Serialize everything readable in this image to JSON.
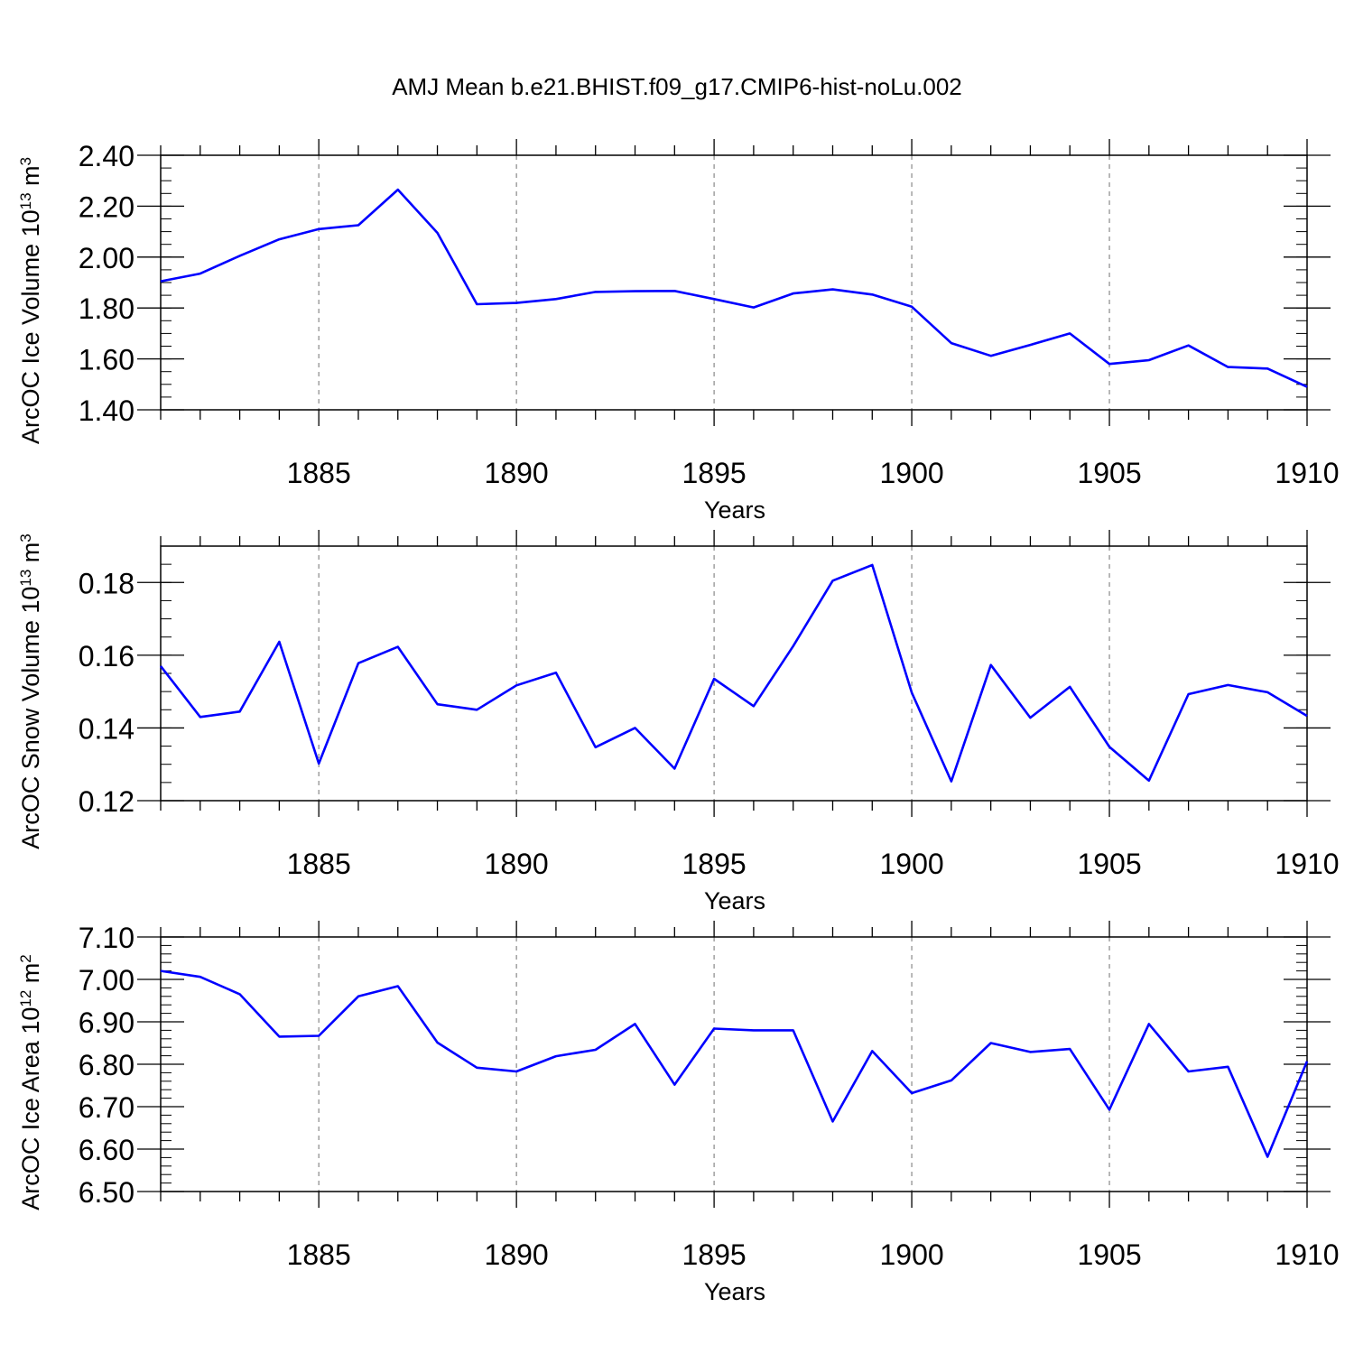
{
  "title": "AMJ Mean b.e21.BHIST.f09_g17.CMIP6-hist-noLu.002",
  "line_color": "#0000ff",
  "chart_data": [
    {
      "type": "line",
      "ylabel_text": "ArcOC Ice Volume 10",
      "ylabel_exp": "13",
      "ylabel_unit": " m",
      "ylabel_unit_exp": "3",
      "xlabel": "Years",
      "xlim": [
        1881,
        1910
      ],
      "ylim": [
        1.4,
        2.4
      ],
      "y_ticks": [
        "1.40",
        "1.60",
        "1.80",
        "2.00",
        "2.20",
        "2.40"
      ],
      "y_tick_values": [
        1.4,
        1.6,
        1.8,
        2.0,
        2.2,
        2.4
      ],
      "y_minor_step": 0.05,
      "x_ticks": [
        "1885",
        "1890",
        "1895",
        "1900",
        "1905",
        "1910"
      ],
      "x_tick_values": [
        1885,
        1890,
        1895,
        1900,
        1905,
        1910
      ],
      "grid": "x-major-dashed",
      "x": [
        1881,
        1882,
        1883,
        1884,
        1885,
        1886,
        1887,
        1888,
        1889,
        1890,
        1891,
        1892,
        1893,
        1894,
        1895,
        1896,
        1897,
        1898,
        1899,
        1900,
        1901,
        1902,
        1903,
        1904,
        1905,
        1906,
        1907,
        1908,
        1909,
        1910
      ],
      "values": [
        1.905,
        1.935,
        2.005,
        2.07,
        2.11,
        2.125,
        2.265,
        2.095,
        1.815,
        1.82,
        1.835,
        1.863,
        1.866,
        1.867,
        1.835,
        1.802,
        1.857,
        1.873,
        1.853,
        1.805,
        1.662,
        1.612,
        1.655,
        1.7,
        1.58,
        1.595,
        1.653,
        1.568,
        1.562,
        1.49
      ]
    },
    {
      "type": "line",
      "ylabel_text": "ArcOC Snow Volume 10",
      "ylabel_exp": "13",
      "ylabel_unit": " m",
      "ylabel_unit_exp": "3",
      "xlabel": "Years",
      "xlim": [
        1881,
        1910
      ],
      "ylim": [
        0.12,
        0.19
      ],
      "y_ticks": [
        "0.12",
        "0.14",
        "0.16",
        "0.18"
      ],
      "y_tick_values": [
        0.12,
        0.14,
        0.16,
        0.18
      ],
      "y_minor_step": 0.005,
      "x_ticks": [
        "1885",
        "1890",
        "1895",
        "1900",
        "1905",
        "1910"
      ],
      "x_tick_values": [
        1885,
        1890,
        1895,
        1900,
        1905,
        1910
      ],
      "grid": "x-major-dashed",
      "x": [
        1881,
        1882,
        1883,
        1884,
        1885,
        1886,
        1887,
        1888,
        1889,
        1890,
        1891,
        1892,
        1893,
        1894,
        1895,
        1896,
        1897,
        1898,
        1899,
        1900,
        1901,
        1902,
        1903,
        1904,
        1905,
        1906,
        1907,
        1908,
        1909,
        1910
      ],
      "values": [
        0.157,
        0.143,
        0.1445,
        0.1637,
        0.1302,
        0.1578,
        0.1623,
        0.1465,
        0.145,
        0.1517,
        0.1552,
        0.1347,
        0.14,
        0.1288,
        0.1535,
        0.146,
        0.1625,
        0.1805,
        0.1848,
        0.1497,
        0.1253,
        0.1573,
        0.1428,
        0.1513,
        0.1348,
        0.1255,
        0.1493,
        0.1518,
        0.1498,
        0.1433
      ]
    },
    {
      "type": "line",
      "ylabel_text": "ArcOC Ice Area 10",
      "ylabel_exp": "12",
      "ylabel_unit": " m",
      "ylabel_unit_exp": "2",
      "xlabel": "Years",
      "xlim": [
        1881,
        1910
      ],
      "ylim": [
        6.5,
        7.1
      ],
      "y_ticks": [
        "6.50",
        "6.60",
        "6.70",
        "6.80",
        "6.90",
        "7.00",
        "7.10"
      ],
      "y_tick_values": [
        6.5,
        6.6,
        6.7,
        6.8,
        6.9,
        7.0,
        7.1
      ],
      "y_minor_step": 0.02,
      "x_ticks": [
        "1885",
        "1890",
        "1895",
        "1900",
        "1905",
        "1910"
      ],
      "x_tick_values": [
        1885,
        1890,
        1895,
        1900,
        1905,
        1910
      ],
      "grid": "x-major-dashed",
      "x": [
        1881,
        1882,
        1883,
        1884,
        1885,
        1886,
        1887,
        1888,
        1889,
        1890,
        1891,
        1892,
        1893,
        1894,
        1895,
        1896,
        1897,
        1898,
        1899,
        1900,
        1901,
        1902,
        1903,
        1904,
        1905,
        1906,
        1907,
        1908,
        1909,
        1910
      ],
      "values": [
        7.02,
        7.006,
        6.965,
        6.865,
        6.867,
        6.96,
        6.984,
        6.851,
        6.792,
        6.783,
        6.819,
        6.834,
        6.895,
        6.752,
        6.884,
        6.88,
        6.88,
        6.665,
        6.831,
        6.732,
        6.762,
        6.85,
        6.829,
        6.836,
        6.693,
        6.895,
        6.783,
        6.794,
        6.582,
        6.807
      ]
    }
  ]
}
